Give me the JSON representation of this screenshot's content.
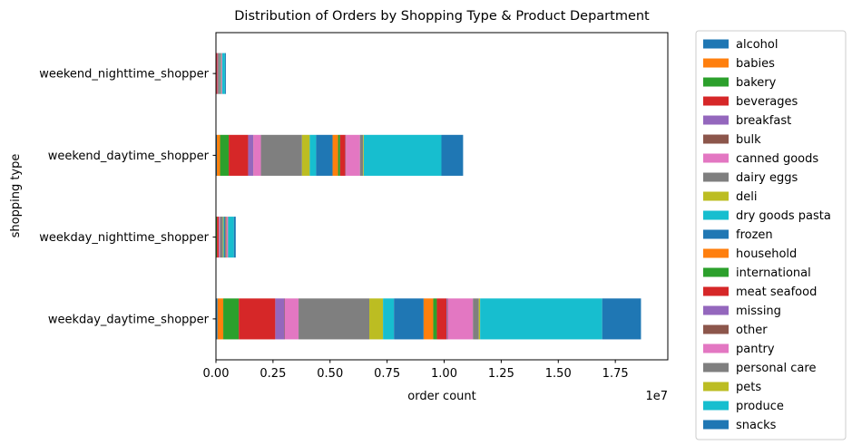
{
  "chart_data": {
    "type": "bar",
    "orientation": "horizontal",
    "stacked": true,
    "title": "Distribution of Orders by Shopping Type & Product Department",
    "xlabel": "order count",
    "ylabel": "shopping type",
    "x_scale_label": "1e7",
    "xlim": [
      0,
      19800000.0
    ],
    "xticks": [
      0,
      2500000,
      5000000,
      7500000,
      10000000,
      12500000,
      15000000,
      17500000
    ],
    "xtick_labels": [
      "0.00",
      "0.25",
      "0.50",
      "0.75",
      "1.00",
      "1.25",
      "1.50",
      "1.75"
    ],
    "grid": false,
    "legend_position": "outside-right",
    "categories": [
      "weekday_daytime_shopper",
      "weekday_nighttime_shopper",
      "weekend_daytime_shopper",
      "weekend_nighttime_shopper"
    ],
    "series": [
      {
        "name": "alcohol",
        "color": "#1f77b4",
        "values": [
          70000,
          5000,
          40000,
          3000
        ]
      },
      {
        "name": "babies",
        "color": "#ff7f0e",
        "values": [
          250000,
          10000,
          140000,
          4000
        ]
      },
      {
        "name": "bakery",
        "color": "#2ca02c",
        "values": [
          680000,
          30000,
          380000,
          15000
        ]
      },
      {
        "name": "beverages",
        "color": "#d62728",
        "values": [
          1600000,
          80000,
          850000,
          40000
        ]
      },
      {
        "name": "breakfast",
        "color": "#9467bd",
        "values": [
          400000,
          20000,
          220000,
          10000
        ]
      },
      {
        "name": "bulk",
        "color": "#8c564b",
        "values": [
          20000,
          1000,
          10000,
          1000
        ]
      },
      {
        "name": "canned goods",
        "color": "#e377c2",
        "values": [
          600000,
          30000,
          330000,
          15000
        ]
      },
      {
        "name": "dairy eggs",
        "color": "#7f7f7f",
        "values": [
          3100000,
          130000,
          1800000,
          70000
        ]
      },
      {
        "name": "deli",
        "color": "#bcbd22",
        "values": [
          600000,
          30000,
          340000,
          15000
        ]
      },
      {
        "name": "dry goods pasta",
        "color": "#17becf",
        "values": [
          480000,
          25000,
          280000,
          12000
        ]
      },
      {
        "name": "frozen",
        "color": "#1f77b4",
        "values": [
          1300000,
          60000,
          720000,
          30000
        ]
      },
      {
        "name": "household",
        "color": "#ff7f0e",
        "values": [
          420000,
          20000,
          240000,
          10000
        ]
      },
      {
        "name": "international",
        "color": "#2ca02c",
        "values": [
          160000,
          8000,
          90000,
          4000
        ]
      },
      {
        "name": "meat seafood",
        "color": "#d62728",
        "values": [
          420000,
          20000,
          230000,
          10000
        ]
      },
      {
        "name": "missing",
        "color": "#9467bd",
        "values": [
          40000,
          2000,
          20000,
          1000
        ]
      },
      {
        "name": "other",
        "color": "#8c564b",
        "values": [
          20000,
          1000,
          10000,
          1000
        ]
      },
      {
        "name": "pantry",
        "color": "#e377c2",
        "values": [
          1100000,
          50000,
          610000,
          25000
        ]
      },
      {
        "name": "personal care",
        "color": "#7f7f7f",
        "values": [
          260000,
          12000,
          140000,
          6000
        ]
      },
      {
        "name": "pets",
        "color": "#bcbd22",
        "values": [
          55000,
          3000,
          30000,
          2000
        ]
      },
      {
        "name": "produce",
        "color": "#17becf",
        "values": [
          5350000,
          250000,
          3400000,
          120000
        ]
      },
      {
        "name": "snacks",
        "color": "#1f77b4",
        "values": [
          1700000,
          80000,
          950000,
          40000
        ]
      }
    ]
  }
}
